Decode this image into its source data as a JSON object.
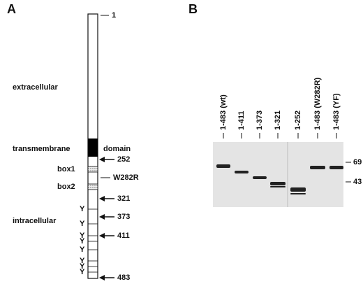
{
  "panel_a": {
    "label": "A",
    "top_marker": "1",
    "regions": {
      "extracellular": "extracellular",
      "transmembrane": "transmembrane",
      "domain": "domain",
      "intracellular": "intracellular"
    },
    "boxes": [
      "box1",
      "box2"
    ],
    "mutation": "W282R",
    "truncations": [
      "252",
      "321",
      "373",
      "411",
      "483"
    ],
    "tyrosines": [
      "Y",
      "Y",
      "Y",
      "Y",
      "Y",
      "Y",
      "Y",
      "Y"
    ]
  },
  "panel_b": {
    "label": "B",
    "lanes": [
      "1-483 (wt)",
      "1-411",
      "1-373",
      "1-321",
      "1-252",
      "1-483 (W282R)",
      "1-483 (YF)"
    ],
    "size_markers": [
      "69",
      "43"
    ]
  }
}
